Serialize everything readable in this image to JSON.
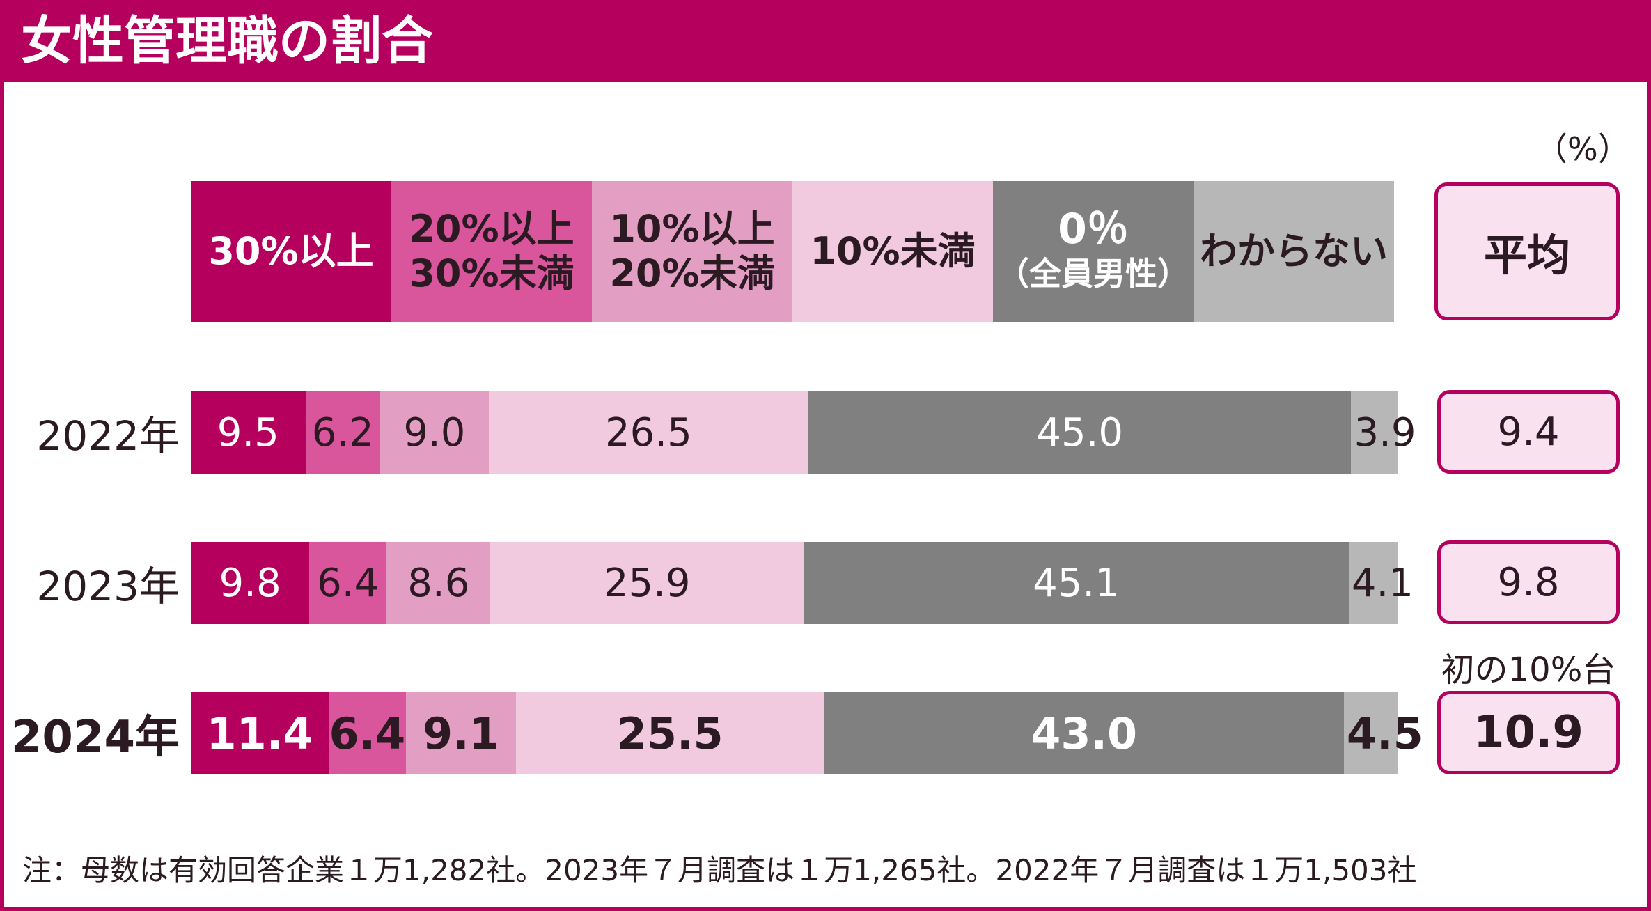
{
  "title": "女性管理職の割合",
  "unit_label": "（%）",
  "legend": {
    "cat0": [
      "30%以上"
    ],
    "cat1": [
      "20%以上",
      "30%未満"
    ],
    "cat2": [
      "10%以上",
      "20%未満"
    ],
    "cat3": [
      "10%未満"
    ],
    "cat4": [
      "0％",
      "（全員男性）"
    ],
    "cat5": [
      "わからない"
    ],
    "avg": "平均"
  },
  "rows": [
    {
      "year": "2022年",
      "values": [
        "9.5",
        "6.2",
        "9.0",
        "26.5",
        "45.0",
        "3.9"
      ],
      "average": "9.4"
    },
    {
      "year": "2023年",
      "values": [
        "9.8",
        "6.4",
        "8.6",
        "25.9",
        "45.1",
        "4.1"
      ],
      "average": "9.8"
    },
    {
      "year": "2024年",
      "values": [
        "11.4",
        "6.4",
        "9.1",
        "25.5",
        "43.0",
        "4.5"
      ],
      "average": "10.9"
    }
  ],
  "avg_note": "初の10%台",
  "footnote": "注：母数は有効回答企業１万1,282社。2023年７月調査は１万1,265社。2022年７月調査は１万1,503社",
  "colors": {
    "brand": "#b5005e",
    "cat0": "#b5005e",
    "cat1": "#d9569c",
    "cat2": "#e39ec4",
    "cat3": "#f1cadf",
    "cat4": "#808080",
    "cat5": "#b7b7b7",
    "avg_fill": "#f9e1ef"
  },
  "chart_data": {
    "type": "bar",
    "stacked": true,
    "orientation": "horizontal",
    "title": "女性管理職の割合",
    "unit": "%",
    "categories": [
      "2022年",
      "2023年",
      "2024年"
    ],
    "series": [
      {
        "name": "30%以上",
        "values": [
          9.5,
          9.8,
          11.4
        ]
      },
      {
        "name": "20%以上30%未満",
        "values": [
          6.2,
          6.4,
          6.4
        ]
      },
      {
        "name": "10%以上20%未満",
        "values": [
          9.0,
          8.6,
          9.1
        ]
      },
      {
        "name": "10%未満",
        "values": [
          26.5,
          25.9,
          25.5
        ]
      },
      {
        "name": "0％（全員男性）",
        "values": [
          45.0,
          45.1,
          43.0
        ]
      },
      {
        "name": "わからない",
        "values": [
          3.9,
          4.1,
          4.5
        ]
      },
      {
        "name": "平均",
        "values": [
          9.4,
          9.8,
          10.9
        ]
      }
    ],
    "legend_placement": "top",
    "grid": false
  }
}
